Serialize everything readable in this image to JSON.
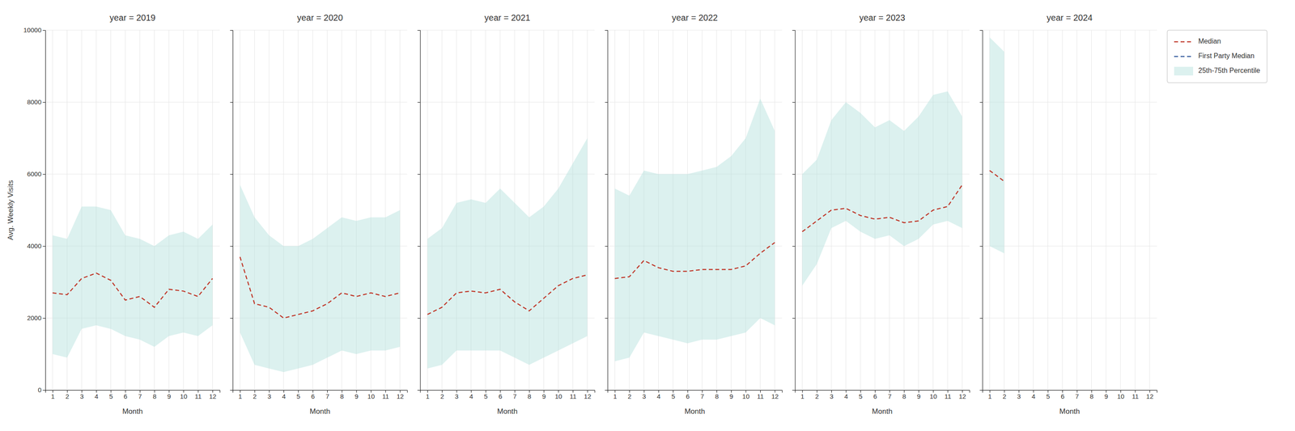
{
  "chart_data": [
    {
      "type": "line",
      "title": "year = 2019",
      "x_label": "Month",
      "y_label": "Avg. Weekly Visits",
      "x": [
        1,
        2,
        3,
        4,
        5,
        6,
        7,
        8,
        9,
        10,
        11,
        12
      ],
      "xlim": [
        0.5,
        12.5
      ],
      "xticks": [
        1,
        2,
        3,
        4,
        5,
        6,
        7,
        8,
        9,
        10,
        11,
        12
      ],
      "ylim": [
        0,
        10000
      ],
      "yticks": [
        0,
        2000,
        4000,
        6000,
        8000,
        10000
      ],
      "grid": true,
      "series": [
        {
          "type": "line",
          "color": "#c0392b",
          "line_style": "dashed",
          "values": [
            2700,
            2650,
            3100,
            3250,
            3050,
            2500,
            2600,
            2300,
            2800,
            2750,
            2600,
            3100
          ]
        },
        {
          "type": "band",
          "color": "#b2dfdb",
          "lower": [
            1000,
            900,
            1700,
            1800,
            1700,
            1500,
            1400,
            1200,
            1500,
            1600,
            1500,
            1800
          ],
          "upper": [
            4300,
            4200,
            5100,
            5100,
            5000,
            4300,
            4200,
            4000,
            4300,
            4400,
            4200,
            4600
          ]
        }
      ]
    },
    {
      "type": "line",
      "title": "year = 2020",
      "x_label": "Month",
      "tick_labels": "x",
      "x": [
        1,
        2,
        3,
        4,
        5,
        6,
        7,
        8,
        9,
        10,
        11,
        12
      ],
      "xlim": [
        0.5,
        12.5
      ],
      "xticks": [
        1,
        2,
        3,
        4,
        5,
        6,
        7,
        8,
        9,
        10,
        11,
        12
      ],
      "ylim": [
        0,
        10000
      ],
      "yticks": [
        0,
        2000,
        4000,
        6000,
        8000,
        10000
      ],
      "grid": true,
      "series": [
        {
          "type": "line",
          "color": "#c0392b",
          "line_style": "dashed",
          "values": [
            3700,
            2400,
            2300,
            2000,
            2100,
            2200,
            2400,
            2700,
            2600,
            2700,
            2600,
            2700
          ]
        },
        {
          "type": "band",
          "color": "#b2dfdb",
          "lower": [
            1600,
            700,
            600,
            500,
            600,
            700,
            900,
            1100,
            1000,
            1100,
            1100,
            1200
          ],
          "upper": [
            5700,
            4800,
            4300,
            4000,
            4000,
            4200,
            4500,
            4800,
            4700,
            4800,
            4800,
            5000
          ]
        }
      ]
    },
    {
      "type": "line",
      "title": "year = 2021",
      "x_label": "Month",
      "tick_labels": "x",
      "x": [
        1,
        2,
        3,
        4,
        5,
        6,
        7,
        8,
        9,
        10,
        11,
        12
      ],
      "xlim": [
        0.5,
        12.5
      ],
      "xticks": [
        1,
        2,
        3,
        4,
        5,
        6,
        7,
        8,
        9,
        10,
        11,
        12
      ],
      "ylim": [
        0,
        10000
      ],
      "yticks": [
        0,
        2000,
        4000,
        6000,
        8000,
        10000
      ],
      "grid": true,
      "series": [
        {
          "type": "line",
          "color": "#c0392b",
          "line_style": "dashed",
          "values": [
            2100,
            2300,
            2700,
            2750,
            2700,
            2800,
            2450,
            2200,
            2550,
            2900,
            3100,
            3200
          ]
        },
        {
          "type": "band",
          "color": "#b2dfdb",
          "lower": [
            600,
            700,
            1100,
            1100,
            1100,
            1100,
            900,
            700,
            900,
            1100,
            1300,
            1500
          ],
          "upper": [
            4200,
            4500,
            5200,
            5300,
            5200,
            5600,
            5200,
            4800,
            5100,
            5600,
            6300,
            7000
          ]
        }
      ]
    },
    {
      "type": "line",
      "title": "year = 2022",
      "x_label": "Month",
      "tick_labels": "x",
      "x": [
        1,
        2,
        3,
        4,
        5,
        6,
        7,
        8,
        9,
        10,
        11,
        12
      ],
      "xlim": [
        0.5,
        12.5
      ],
      "xticks": [
        1,
        2,
        3,
        4,
        5,
        6,
        7,
        8,
        9,
        10,
        11,
        12
      ],
      "ylim": [
        0,
        10000
      ],
      "yticks": [
        0,
        2000,
        4000,
        6000,
        8000,
        10000
      ],
      "grid": true,
      "series": [
        {
          "type": "line",
          "color": "#c0392b",
          "line_style": "dashed",
          "values": [
            3100,
            3150,
            3600,
            3400,
            3300,
            3300,
            3350,
            3350,
            3350,
            3450,
            3800,
            4100
          ]
        },
        {
          "type": "band",
          "color": "#b2dfdb",
          "lower": [
            800,
            900,
            1600,
            1500,
            1400,
            1300,
            1400,
            1400,
            1500,
            1600,
            2000,
            1800
          ],
          "upper": [
            5600,
            5400,
            6100,
            6000,
            6000,
            6000,
            6100,
            6200,
            6500,
            7000,
            8100,
            7200
          ]
        }
      ]
    },
    {
      "type": "line",
      "title": "year = 2023",
      "x_label": "Month",
      "tick_labels": "x",
      "x": [
        1,
        2,
        3,
        4,
        5,
        6,
        7,
        8,
        9,
        10,
        11,
        12
      ],
      "xlim": [
        0.5,
        12.5
      ],
      "xticks": [
        1,
        2,
        3,
        4,
        5,
        6,
        7,
        8,
        9,
        10,
        11,
        12
      ],
      "ylim": [
        0,
        10000
      ],
      "yticks": [
        0,
        2000,
        4000,
        6000,
        8000,
        10000
      ],
      "grid": true,
      "series": [
        {
          "type": "line",
          "color": "#c0392b",
          "line_style": "dashed",
          "values": [
            4400,
            4700,
            5000,
            5050,
            4850,
            4750,
            4800,
            4650,
            4700,
            5000,
            5100,
            5700
          ]
        },
        {
          "type": "band",
          "color": "#b2dfdb",
          "lower": [
            2900,
            3500,
            4500,
            4700,
            4400,
            4200,
            4300,
            4000,
            4200,
            4600,
            4700,
            4500
          ],
          "upper": [
            6000,
            6400,
            7500,
            8000,
            7700,
            7300,
            7500,
            7200,
            7600,
            8200,
            8300,
            7600
          ]
        }
      ]
    },
    {
      "type": "line",
      "title": "year = 2024",
      "x_label": "Month",
      "tick_labels": "x",
      "x": [
        1,
        2,
        3,
        4,
        5,
        6,
        7,
        8,
        9,
        10,
        11,
        12
      ],
      "xlim": [
        0.5,
        12.5
      ],
      "xticks": [
        1,
        2,
        3,
        4,
        5,
        6,
        7,
        8,
        9,
        10,
        11,
        12
      ],
      "ylim": [
        0,
        10000
      ],
      "yticks": [
        0,
        2000,
        4000,
        6000,
        8000,
        10000
      ],
      "grid": true,
      "legend": "upper right",
      "series": [
        {
          "name": "Median",
          "type": "line",
          "color": "#c0392b",
          "line_style": "dashed",
          "values": [
            6100,
            5800,
            null,
            null,
            null,
            null,
            null,
            null,
            null,
            null,
            null,
            null
          ]
        },
        {
          "name": "First Party Median",
          "type": "line",
          "color": "#3a5fa0",
          "line_style": "dashed",
          "values": [
            null,
            null,
            null,
            null,
            null,
            null,
            null,
            null,
            null,
            null,
            null,
            null
          ]
        },
        {
          "name": "25th-75th Percentile",
          "type": "band",
          "color": "#b2dfdb",
          "lower": [
            4000,
            3800,
            null,
            null,
            null,
            null,
            null,
            null,
            null,
            null,
            null,
            null
          ],
          "upper": [
            9800,
            9400,
            null,
            null,
            null,
            null,
            null,
            null,
            null,
            null,
            null,
            null
          ]
        }
      ]
    }
  ]
}
